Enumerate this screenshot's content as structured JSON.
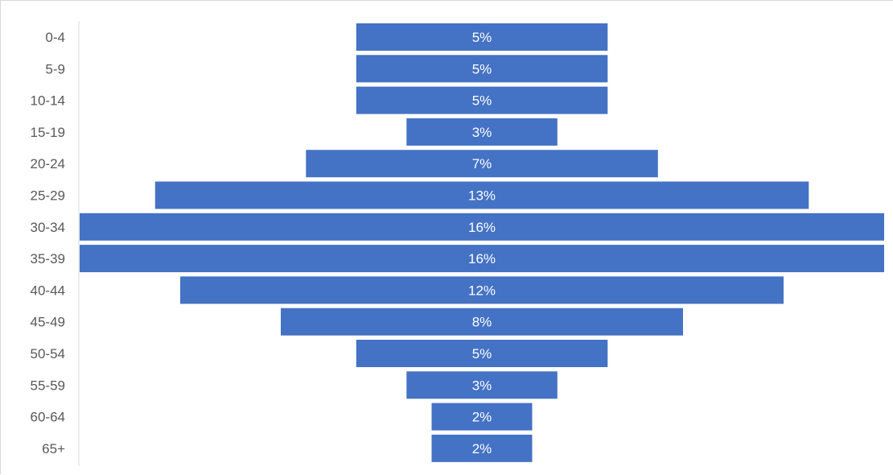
{
  "chart_data": {
    "type": "bar",
    "orientation": "horizontal",
    "style": "centered-pyramid",
    "categories": [
      "0-4",
      "5-9",
      "10-14",
      "15-19",
      "20-24",
      "25-29",
      "30-34",
      "35-39",
      "40-44",
      "45-49",
      "50-54",
      "55-59",
      "60-64",
      "65+"
    ],
    "values": [
      5,
      5,
      5,
      3,
      7,
      13,
      16,
      16,
      12,
      8,
      5,
      3,
      2,
      2
    ],
    "data_labels": [
      "5%",
      "5%",
      "5%",
      "3%",
      "7%",
      "13%",
      "16%",
      "16%",
      "12%",
      "8%",
      "5%",
      "3%",
      "2%",
      "2%"
    ],
    "unit": "%",
    "grid": false,
    "legend": "none",
    "bar_color": "#4472c4",
    "label_color": "#ffffff",
    "axis_label_color": "#595959"
  }
}
